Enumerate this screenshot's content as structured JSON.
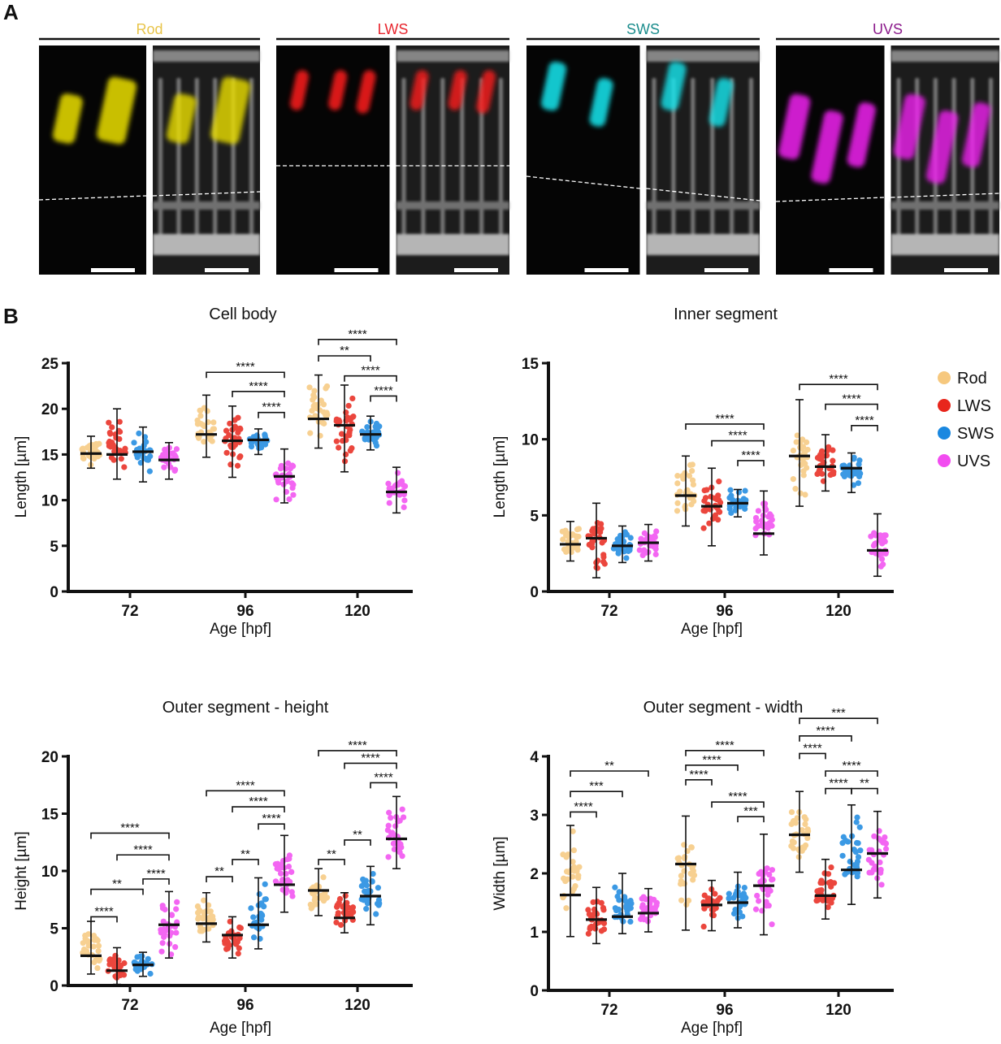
{
  "panel_a": {
    "letter": "A",
    "groups": [
      {
        "label": "Rod",
        "color": "#e8c44a",
        "channel": "#ece000"
      },
      {
        "label": "LWS",
        "color": "#e8262e",
        "channel": "#ff1a1a"
      },
      {
        "label": "SWS",
        "color": "#1a8c8c",
        "channel": "#18e8f0"
      },
      {
        "label": "UVS",
        "color": "#8b1a8b",
        "channel": "#f020f0"
      }
    ]
  },
  "panel_b": {
    "letter": "B"
  },
  "legend": {
    "items": [
      {
        "label": "Rod",
        "color": "#f6c87e"
      },
      {
        "label": "LWS",
        "color": "#e8261c"
      },
      {
        "label": "SWS",
        "color": "#1a88e0"
      },
      {
        "label": "UVS",
        "color": "#f24cf0"
      }
    ],
    "placement": "right"
  },
  "chart_data": [
    {
      "type": "scatter",
      "title": "Cell body",
      "xlabel": "Age [hpf]",
      "ylabel": "Length [µm]",
      "categories": [
        "72",
        "96",
        "120"
      ],
      "ylim": [
        0,
        25
      ],
      "yticks": [
        "0",
        "5",
        "10",
        "15",
        "20",
        "25"
      ],
      "series": [
        {
          "name": "Rod",
          "mean": [
            15.1,
            17.2,
            18.9
          ],
          "low": [
            13.5,
            14.7,
            15.7
          ],
          "high": [
            17.0,
            21.5,
            23.7
          ]
        },
        {
          "name": "LWS",
          "mean": [
            15.0,
            16.5,
            18.2
          ],
          "low": [
            12.3,
            12.5,
            13.1
          ],
          "high": [
            20.0,
            20.3,
            22.6
          ]
        },
        {
          "name": "SWS",
          "mean": [
            15.3,
            16.6,
            17.2
          ],
          "low": [
            12.0,
            15.0,
            15.5
          ],
          "high": [
            18.0,
            17.8,
            19.2
          ]
        },
        {
          "name": "UVS",
          "mean": [
            14.4,
            12.6,
            10.9
          ],
          "low": [
            12.3,
            9.7,
            8.6
          ],
          "high": [
            16.3,
            15.6,
            13.6
          ]
        }
      ],
      "comparisons": [
        {
          "group": 1,
          "a": 0,
          "b": 3,
          "label": "****",
          "y": 24.0
        },
        {
          "group": 1,
          "a": 1,
          "b": 3,
          "label": "****",
          "y": 21.9
        },
        {
          "group": 1,
          "a": 2,
          "b": 3,
          "label": "****",
          "y": 19.6
        },
        {
          "group": 2,
          "a": 0,
          "b": 3,
          "label": "****",
          "y": 27.6
        },
        {
          "group": 2,
          "a": 0,
          "b": 2,
          "label": "**",
          "y": 25.8
        },
        {
          "group": 2,
          "a": 1,
          "b": 3,
          "label": "****",
          "y": 23.6
        },
        {
          "group": 2,
          "a": 2,
          "b": 3,
          "label": "****",
          "y": 21.4
        }
      ]
    },
    {
      "type": "scatter",
      "title": "Inner segment",
      "xlabel": "Age [hpf]",
      "ylabel": "Length [µm]",
      "categories": [
        "72",
        "96",
        "120"
      ],
      "ylim": [
        0,
        15
      ],
      "yticks": [
        "0",
        "5",
        "10",
        "15"
      ],
      "series": [
        {
          "name": "Rod",
          "mean": [
            3.1,
            6.3,
            8.9
          ],
          "low": [
            2.0,
            4.3,
            5.6
          ],
          "high": [
            4.6,
            8.9,
            12.6
          ]
        },
        {
          "name": "LWS",
          "mean": [
            3.5,
            5.6,
            8.2
          ],
          "low": [
            0.9,
            3.0,
            6.6
          ],
          "high": [
            5.8,
            8.1,
            10.3
          ]
        },
        {
          "name": "SWS",
          "mean": [
            3.0,
            5.8,
            8.1
          ],
          "low": [
            1.9,
            4.9,
            6.5
          ],
          "high": [
            4.3,
            6.7,
            9.1
          ]
        },
        {
          "name": "UVS",
          "mean": [
            3.2,
            3.8,
            2.7
          ],
          "low": [
            2.0,
            2.4,
            1.0
          ],
          "high": [
            4.4,
            6.6,
            5.1
          ]
        }
      ],
      "comparisons": [
        {
          "group": 1,
          "a": 0,
          "b": 3,
          "label": "****",
          "y": 11.0
        },
        {
          "group": 1,
          "a": 1,
          "b": 3,
          "label": "****",
          "y": 9.9
        },
        {
          "group": 1,
          "a": 2,
          "b": 3,
          "label": "****",
          "y": 8.6
        },
        {
          "group": 2,
          "a": 0,
          "b": 3,
          "label": "****",
          "y": 13.6
        },
        {
          "group": 2,
          "a": 1,
          "b": 3,
          "label": "****",
          "y": 12.3
        },
        {
          "group": 2,
          "a": 2,
          "b": 3,
          "label": "****",
          "y": 10.9
        }
      ]
    },
    {
      "type": "scatter",
      "title": "Outer segment  - height",
      "xlabel": "Age [hpf]",
      "ylabel": "Height [µm]",
      "categories": [
        "72",
        "96",
        "120"
      ],
      "ylim": [
        0,
        20
      ],
      "yticks": [
        "0",
        "5",
        "10",
        "15",
        "20"
      ],
      "series": [
        {
          "name": "Rod",
          "mean": [
            2.6,
            5.4,
            8.3
          ],
          "low": [
            1.0,
            3.8,
            6.1
          ],
          "high": [
            5.6,
            8.1,
            10.2
          ]
        },
        {
          "name": "LWS",
          "mean": [
            1.3,
            4.4,
            5.9
          ],
          "low": [
            0.1,
            2.4,
            4.6
          ],
          "high": [
            3.3,
            6.0,
            8.1
          ]
        },
        {
          "name": "SWS",
          "mean": [
            1.8,
            5.3,
            7.8
          ],
          "low": [
            0.8,
            3.2,
            5.3
          ],
          "high": [
            2.9,
            9.4,
            10.4
          ]
        },
        {
          "name": "UVS",
          "mean": [
            5.3,
            8.8,
            12.8
          ],
          "low": [
            2.4,
            6.4,
            10.2
          ],
          "high": [
            8.2,
            13.1,
            16.5
          ]
        }
      ],
      "comparisons": [
        {
          "group": 0,
          "a": 0,
          "b": 3,
          "label": "****",
          "y": 13.3
        },
        {
          "group": 0,
          "a": 1,
          "b": 3,
          "label": "****",
          "y": 11.4
        },
        {
          "group": 0,
          "a": 0,
          "b": 2,
          "label": "**",
          "y": 8.4
        },
        {
          "group": 0,
          "a": 2,
          "b": 3,
          "label": "****",
          "y": 9.3
        },
        {
          "group": 0,
          "a": 0,
          "b": 1,
          "label": "****",
          "y": 6.0
        },
        {
          "group": 1,
          "a": 0,
          "b": 3,
          "label": "****",
          "y": 17.0
        },
        {
          "group": 1,
          "a": 1,
          "b": 3,
          "label": "****",
          "y": 15.6
        },
        {
          "group": 1,
          "a": 2,
          "b": 3,
          "label": "****",
          "y": 14.1
        },
        {
          "group": 1,
          "a": 1,
          "b": 2,
          "label": "**",
          "y": 11.0
        },
        {
          "group": 1,
          "a": 0,
          "b": 1,
          "label": "**",
          "y": 9.5
        },
        {
          "group": 2,
          "a": 0,
          "b": 3,
          "label": "****",
          "y": 20.5
        },
        {
          "group": 2,
          "a": 1,
          "b": 3,
          "label": "****",
          "y": 19.4
        },
        {
          "group": 2,
          "a": 2,
          "b": 3,
          "label": "****",
          "y": 17.7
        },
        {
          "group": 2,
          "a": 1,
          "b": 2,
          "label": "**",
          "y": 12.7
        },
        {
          "group": 2,
          "a": 0,
          "b": 1,
          "label": "**",
          "y": 11.0
        }
      ]
    },
    {
      "type": "scatter",
      "title": "Outer segment - width",
      "xlabel": "Age [hpf]",
      "ylabel": "Width [µm]",
      "categories": [
        "72",
        "96",
        "120"
      ],
      "ylim": [
        0,
        4
      ],
      "yticks": [
        "0",
        "1",
        "2",
        "3",
        "4"
      ],
      "series": [
        {
          "name": "Rod",
          "mean": [
            1.63,
            2.16,
            2.66
          ],
          "low": [
            0.92,
            1.03,
            2.02
          ],
          "high": [
            2.82,
            2.98,
            3.4
          ]
        },
        {
          "name": "LWS",
          "mean": [
            1.21,
            1.46,
            1.62
          ],
          "low": [
            0.8,
            1.02,
            1.22
          ],
          "high": [
            1.76,
            1.88,
            2.24
          ]
        },
        {
          "name": "SWS",
          "mean": [
            1.26,
            1.5,
            2.06
          ],
          "low": [
            0.97,
            1.07,
            1.47
          ],
          "high": [
            2.0,
            2.02,
            3.17
          ]
        },
        {
          "name": "UVS",
          "mean": [
            1.32,
            1.79,
            2.34
          ],
          "low": [
            1.0,
            0.95,
            1.58
          ],
          "high": [
            1.74,
            2.67,
            3.06
          ]
        }
      ],
      "comparisons": [
        {
          "group": 0,
          "a": 0,
          "b": 3,
          "label": "**",
          "y": 3.75
        },
        {
          "group": 0,
          "a": 0,
          "b": 2,
          "label": "***",
          "y": 3.4
        },
        {
          "group": 0,
          "a": 0,
          "b": 1,
          "label": "****",
          "y": 3.05
        },
        {
          "group": 1,
          "a": 0,
          "b": 3,
          "label": "****",
          "y": 4.1
        },
        {
          "group": 1,
          "a": 0,
          "b": 2,
          "label": "****",
          "y": 3.85
        },
        {
          "group": 1,
          "a": 0,
          "b": 1,
          "label": "****",
          "y": 3.6
        },
        {
          "group": 1,
          "a": 1,
          "b": 3,
          "label": "****",
          "y": 3.22
        },
        {
          "group": 1,
          "a": 2,
          "b": 3,
          "label": "***",
          "y": 2.97
        },
        {
          "group": 2,
          "a": 0,
          "b": 3,
          "label": "***",
          "y": 4.65
        },
        {
          "group": 2,
          "a": 0,
          "b": 2,
          "label": "****",
          "y": 4.35
        },
        {
          "group": 2,
          "a": 0,
          "b": 1,
          "label": "****",
          "y": 4.05
        },
        {
          "group": 2,
          "a": 1,
          "b": 3,
          "label": "****",
          "y": 3.75
        },
        {
          "group": 2,
          "a": 1,
          "b": 2,
          "label": "****",
          "y": 3.45
        },
        {
          "group": 2,
          "a": 2,
          "b": 3,
          "label": "**",
          "y": 3.45
        }
      ]
    }
  ]
}
